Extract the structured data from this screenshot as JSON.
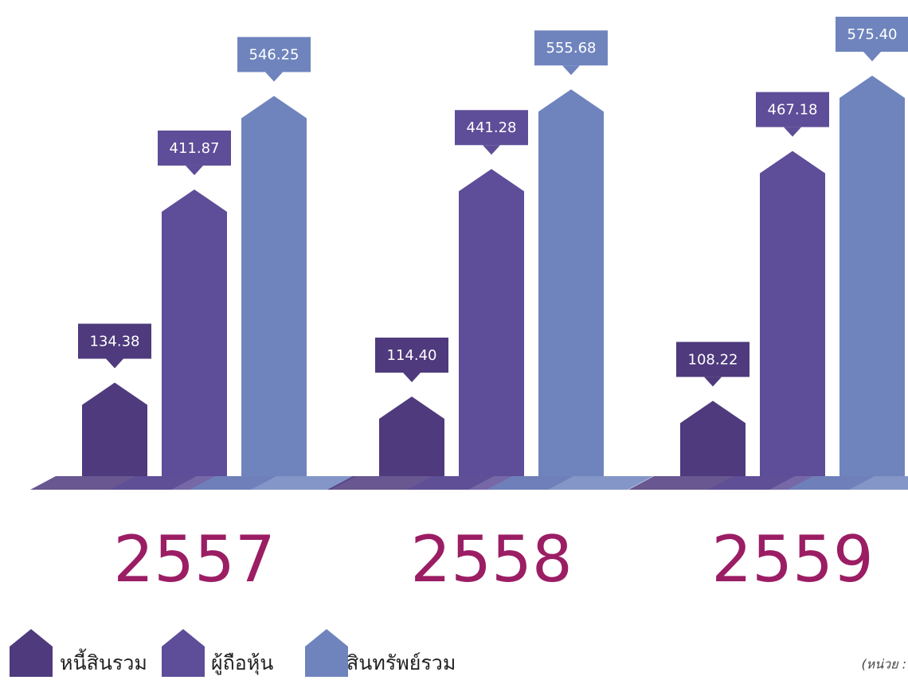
{
  "chart_data": {
    "type": "bar",
    "categories": [
      "2557",
      "2558",
      "2559"
    ],
    "series": [
      {
        "name": "หนี้สินรวม",
        "color": "#4e3a7c",
        "values": [
          134.38,
          114.4,
          108.22
        ],
        "value_labels": [
          "134.38",
          "114.40",
          "108.22"
        ]
      },
      {
        "name": "ผู้ถือหุ้น",
        "color": "#5e4d98",
        "values": [
          411.87,
          441.28,
          467.18
        ],
        "value_labels": [
          "411.87",
          "441.28",
          "467.18"
        ]
      },
      {
        "name": "สินทรัพย์รวม",
        "color": "#6f84bd",
        "values": [
          546.25,
          555.68,
          575.4
        ],
        "value_labels": [
          "546.25",
          "555.68",
          "575.40"
        ]
      }
    ],
    "note": "(หน่วย :"
  }
}
